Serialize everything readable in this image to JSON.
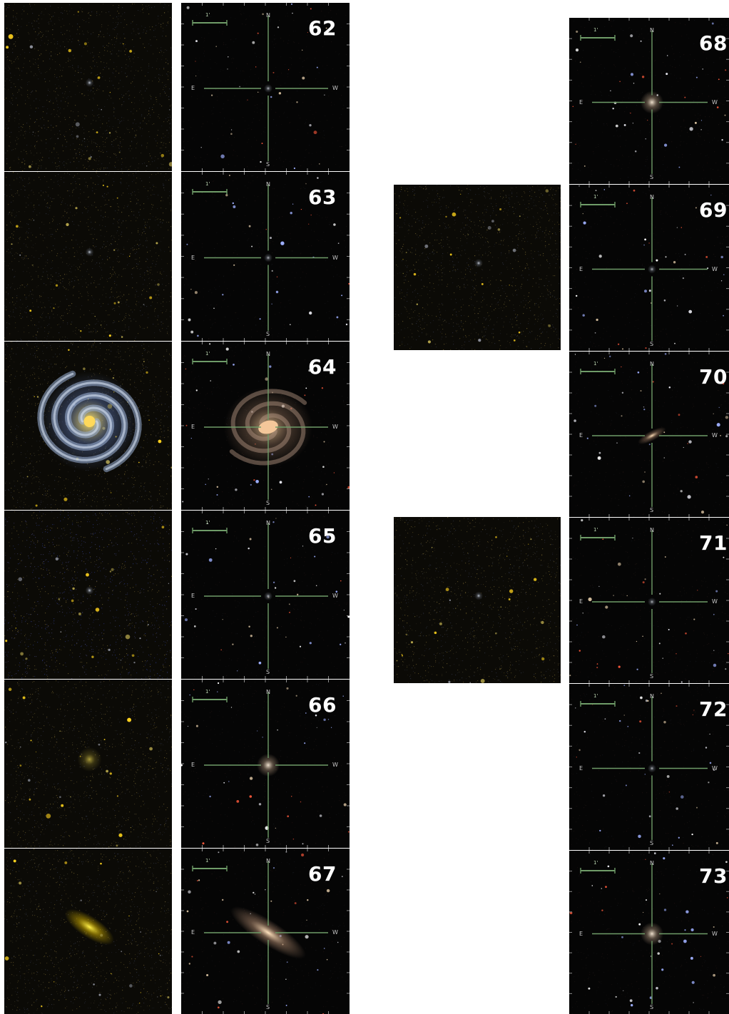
{
  "compass": {
    "north": "N",
    "south": "S",
    "east": "E",
    "west": "W",
    "scale_label": "1'"
  },
  "left_column": {
    "galex_panels": [
      {
        "id": "62",
        "galaxy": "faint-compact"
      },
      {
        "id": "63",
        "galaxy": "faint-compact"
      },
      {
        "id": "64",
        "galaxy": "face-on-spiral"
      },
      {
        "id": "65",
        "galaxy": "faint-compact"
      },
      {
        "id": "66",
        "galaxy": "diffuse"
      },
      {
        "id": "67",
        "galaxy": "edge-on"
      }
    ],
    "sdss_panels": [
      {
        "number": "62",
        "galaxy": "faint-compact"
      },
      {
        "number": "63",
        "galaxy": "faint-compact"
      },
      {
        "number": "64",
        "galaxy": "barred-spiral"
      },
      {
        "number": "65",
        "galaxy": "faint-compact"
      },
      {
        "number": "66",
        "galaxy": "elliptical"
      },
      {
        "number": "67",
        "galaxy": "edge-on"
      }
    ]
  },
  "right_column": {
    "galex_panels": [
      {
        "id": "69",
        "galaxy": "faint-compact"
      },
      {
        "id": "71",
        "galaxy": "faint-compact"
      }
    ],
    "sdss_panels": [
      {
        "number": "68",
        "galaxy": "elliptical"
      },
      {
        "number": "69",
        "galaxy": "faint-compact"
      },
      {
        "number": "70",
        "galaxy": "inclined-disk"
      },
      {
        "number": "71",
        "galaxy": "faint-compact"
      },
      {
        "number": "72",
        "galaxy": "faint-compact"
      },
      {
        "number": "73",
        "galaxy": "elliptical"
      }
    ]
  },
  "colors": {
    "crosshair": "#6f9c68",
    "galex_star": "#ffd21e",
    "galex_noise": "#6a5a2a",
    "galex_blue_noise": "#27306e",
    "spiral_arms": "#9fb4d8",
    "sdss_core": "#f4c79a"
  }
}
